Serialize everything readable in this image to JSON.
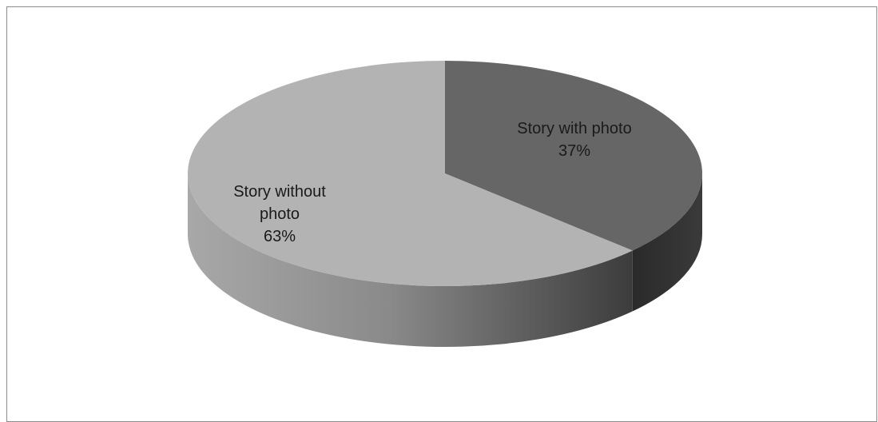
{
  "chart_data": {
    "type": "pie",
    "style": "3d",
    "slices": [
      {
        "label_lines": [
          "Story with photo"
        ],
        "value_text": "37%",
        "value": 37,
        "color": "#666666"
      },
      {
        "label_lines": [
          "Story without",
          "photo"
        ],
        "value_text": "63%",
        "value": 63,
        "color": "#b3b3b3"
      }
    ],
    "legend": "none",
    "data_labels": "inside"
  }
}
